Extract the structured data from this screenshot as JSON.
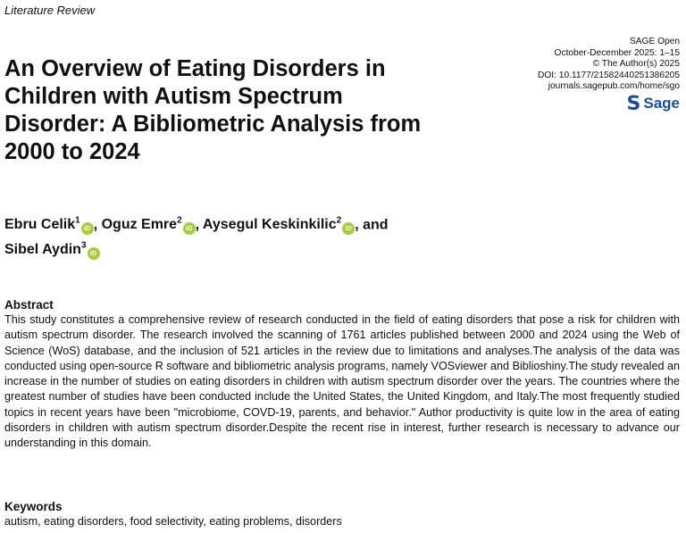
{
  "header": {
    "section": "Literature Review"
  },
  "journal": {
    "name": "SAGE Open",
    "issue": "October-December 2025: 1–15",
    "copyright": "© The Author(s) 2025",
    "doi": "DOI: 10.1177/21582440251386205",
    "url": "journals.sagepub.com/home/sgo",
    "logo_text": "Sage",
    "logo_color": "#1a4e95"
  },
  "title": "An Overview of Eating Disorders in Children with Autism Spectrum Disorder: A Bibliometric Analysis from 2000 to 2024",
  "authors": [
    {
      "name": "Ebru Celik",
      "aff": "1",
      "sep": ", "
    },
    {
      "name": "Oguz Emre",
      "aff": "2",
      "sep": ", "
    },
    {
      "name": "Aysegul Keskinkilic",
      "aff": "2",
      "sep": ", and "
    },
    {
      "name": "Sibel Aydin",
      "aff": "3",
      "sep": ""
    }
  ],
  "orcid_icon": {
    "label": "iD",
    "color": "#a6ce39"
  },
  "abstract": {
    "heading": "Abstract",
    "text": "This study constitutes a comprehensive review of research conducted in the field of eating disorders that pose a risk for children with autism spectrum disorder. The research involved the scanning of 1761 articles published between 2000 and 2024 using the Web of Science (WoS) database, and the inclusion of 521 articles in the review due to limitations and analyses.The analysis of the data was conducted using open-source R software and bibliometric analysis programs, namely VOSviewer and Biblioshiny.The study revealed an increase in the number of studies on eating disorders in children with autism spectrum disorder over the years. The countries where the greatest number of studies have been conducted include the United States, the United Kingdom, and Italy.The most frequently studied topics in recent years have been \"microbiome, COVD-19, parents, and behavior.\" Author productivity is quite low in the area of eating disorders in children with autism spectrum disorder.Despite the recent rise in interest, further research is necessary to advance our understanding in this domain."
  },
  "keywords": {
    "heading": "Keywords",
    "text": "autism, eating disorders, food selectivity, eating problems, disorders"
  }
}
